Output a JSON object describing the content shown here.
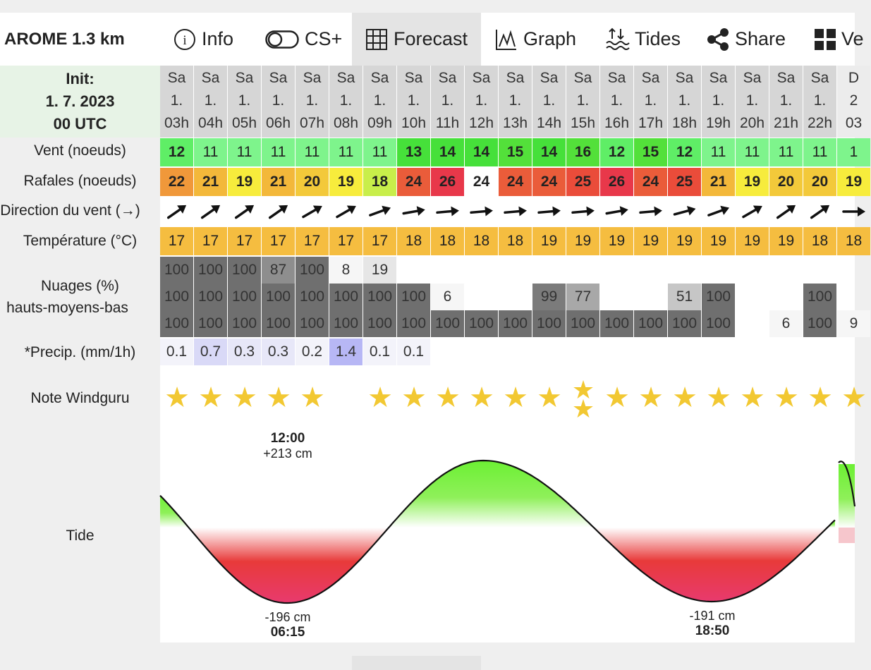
{
  "model_name": "AROME 1.3 km",
  "tabs": [
    {
      "label": "Info",
      "icon": "info-icon"
    },
    {
      "label": "CS+",
      "icon": "toggle-icon"
    },
    {
      "label": "Forecast",
      "icon": "grid-icon",
      "active": true
    },
    {
      "label": "Graph",
      "icon": "graph-icon"
    },
    {
      "label": "Tides",
      "icon": "tides-icon"
    },
    {
      "label": "Share",
      "icon": "share-icon"
    },
    {
      "label": "Ve",
      "icon": "four-squares-icon"
    }
  ],
  "init": {
    "line1": "Init:",
    "line2": "1. 7. 2023",
    "line3": "00 UTC"
  },
  "row_labels": {
    "wind": "Vent (noeuds)",
    "gust": "Rafales (noeuds)",
    "direction": "Direction du vent (→)",
    "temp": "Température (°C)",
    "clouds_line1": "Nuages (%)",
    "clouds_line2": "hauts-moyens-bas",
    "precip": "*Precip. (mm/1h)",
    "rating": "Note Windguru",
    "tide": "Tide"
  },
  "columns": [
    {
      "day": "Sa",
      "date": "1.",
      "hour": "03h",
      "wind": "12",
      "gust": "22",
      "dir": 55,
      "temp": "17",
      "ch": "100",
      "cm": "100",
      "cl": "100",
      "p": "0.1",
      "stars": 1
    },
    {
      "day": "Sa",
      "date": "1.",
      "hour": "04h",
      "wind": "11",
      "gust": "21",
      "dir": 55,
      "temp": "17",
      "ch": "100",
      "cm": "100",
      "cl": "100",
      "p": "0.7",
      "stars": 1
    },
    {
      "day": "Sa",
      "date": "1.",
      "hour": "05h",
      "wind": "11",
      "gust": "19",
      "dir": 55,
      "temp": "17",
      "ch": "100",
      "cm": "100",
      "cl": "100",
      "p": "0.3",
      "stars": 1
    },
    {
      "day": "Sa",
      "date": "1.",
      "hour": "06h",
      "wind": "11",
      "gust": "21",
      "dir": 55,
      "temp": "17",
      "ch": "87",
      "cm": "100",
      "cl": "100",
      "p": "0.3",
      "stars": 1
    },
    {
      "day": "Sa",
      "date": "1.",
      "hour": "07h",
      "wind": "11",
      "gust": "20",
      "dir": 60,
      "temp": "17",
      "ch": "100",
      "cm": "100",
      "cl": "100",
      "p": "0.2",
      "stars": 1
    },
    {
      "day": "Sa",
      "date": "1.",
      "hour": "08h",
      "wind": "11",
      "gust": "19",
      "dir": 60,
      "temp": "17",
      "ch": "8",
      "cm": "100",
      "cl": "100",
      "p": "1.4",
      "stars": 0
    },
    {
      "day": "Sa",
      "date": "1.",
      "hour": "09h",
      "wind": "11",
      "gust": "18",
      "dir": 70,
      "temp": "17",
      "ch": "19",
      "cm": "100",
      "cl": "100",
      "p": "0.1",
      "stars": 1
    },
    {
      "day": "Sa",
      "date": "1.",
      "hour": "10h",
      "wind": "13",
      "gust": "24",
      "dir": 80,
      "temp": "18",
      "ch": "",
      "cm": "100",
      "cl": "100",
      "p": "0.1",
      "stars": 1
    },
    {
      "day": "Sa",
      "date": "1.",
      "hour": "11h",
      "wind": "14",
      "gust": "26",
      "dir": 85,
      "temp": "18",
      "ch": "",
      "cm": "6",
      "cl": "100",
      "p": "",
      "stars": 1
    },
    {
      "day": "Sa",
      "date": "1.",
      "hour": "12h",
      "wind": "14",
      "gust": "24",
      "dir": 85,
      "temp": "18",
      "ch": "",
      "cm": "",
      "cl": "100",
      "p": "",
      "stars": 1
    },
    {
      "day": "Sa",
      "date": "1.",
      "hour": "13h",
      "wind": "15",
      "gust": "24",
      "dir": 85,
      "temp": "18",
      "ch": "",
      "cm": "",
      "cl": "100",
      "p": "",
      "stars": 1
    },
    {
      "day": "Sa",
      "date": "1.",
      "hour": "14h",
      "wind": "14",
      "gust": "24",
      "dir": 85,
      "temp": "19",
      "ch": "",
      "cm": "99",
      "cl": "100",
      "p": "",
      "stars": 1
    },
    {
      "day": "Sa",
      "date": "1.",
      "hour": "15h",
      "wind": "16",
      "gust": "25",
      "dir": 85,
      "temp": "19",
      "ch": "",
      "cm": "77",
      "cl": "100",
      "p": "",
      "stars": 2
    },
    {
      "day": "Sa",
      "date": "1.",
      "hour": "16h",
      "wind": "12",
      "gust": "26",
      "dir": 80,
      "temp": "19",
      "ch": "",
      "cm": "",
      "cl": "100",
      "p": "",
      "stars": 1
    },
    {
      "day": "Sa",
      "date": "1.",
      "hour": "17h",
      "wind": "15",
      "gust": "24",
      "dir": 85,
      "temp": "19",
      "ch": "",
      "cm": "",
      "cl": "100",
      "p": "",
      "stars": 1
    },
    {
      "day": "Sa",
      "date": "1.",
      "hour": "18h",
      "wind": "12",
      "gust": "25",
      "dir": 75,
      "temp": "19",
      "ch": "",
      "cm": "51",
      "cl": "100",
      "p": "",
      "stars": 1
    },
    {
      "day": "Sa",
      "date": "1.",
      "hour": "19h",
      "wind": "11",
      "gust": "21",
      "dir": 70,
      "temp": "19",
      "ch": "",
      "cm": "100",
      "cl": "100",
      "p": "",
      "stars": 1
    },
    {
      "day": "Sa",
      "date": "1.",
      "hour": "20h",
      "wind": "11",
      "gust": "19",
      "dir": 60,
      "temp": "19",
      "ch": "",
      "cm": "",
      "cl": "",
      "p": "",
      "stars": 1
    },
    {
      "day": "Sa",
      "date": "1.",
      "hour": "21h",
      "wind": "11",
      "gust": "20",
      "dir": 55,
      "temp": "19",
      "ch": "",
      "cm": "",
      "cl": "6",
      "p": "",
      "stars": 1
    },
    {
      "day": "Sa",
      "date": "1.",
      "hour": "22h",
      "wind": "11",
      "gust": "20",
      "dir": 55,
      "temp": "18",
      "ch": "",
      "cm": "100",
      "cl": "100",
      "p": "",
      "stars": 1
    },
    {
      "day": "D",
      "date": "2",
      "hour": "03",
      "wind": "1",
      "gust": "19",
      "dir": 90,
      "temp": "18",
      "ch": "",
      "cm": "",
      "cl": "9",
      "p": "",
      "stars": 1
    }
  ],
  "tide": {
    "low1": {
      "height": "-196 cm",
      "time": "06:15"
    },
    "high1": {
      "time": "12:00",
      "height": "+213 cm"
    },
    "low2": {
      "height": "-191 cm",
      "time": "18:50"
    }
  }
}
